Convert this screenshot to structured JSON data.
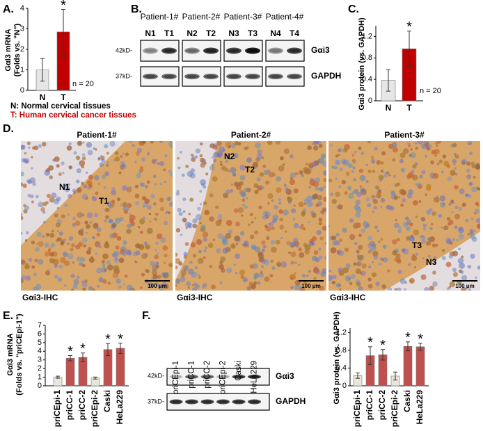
{
  "panel_labels": [
    "A.",
    "B.",
    "C.",
    "D.",
    "E.",
    "F."
  ],
  "chart_data": [
    {
      "type": "bar",
      "ylabel": [
        "Gαi3 mRNA",
        "(Folds vs. \"N\")"
      ],
      "categories": [
        "N",
        "T"
      ],
      "category_colors": [
        "#000000",
        "#c00000"
      ],
      "values": [
        1.0,
        2.85
      ],
      "errors": [
        0.55,
        1.1
      ],
      "colors": [
        "#e6e6e6",
        "#c00000"
      ],
      "markers": [
        null,
        "*"
      ],
      "ylim": [
        0,
        4
      ],
      "yticks": [
        0,
        1,
        2,
        3,
        4
      ],
      "note": "n = 20"
    },
    {
      "type": "bar",
      "ylabel": [
        "Gαi3 protein (vs. GAPDH)"
      ],
      "categories": [
        "N",
        "T"
      ],
      "category_colors": [
        "#000000",
        "#c00000"
      ],
      "values": [
        0.38,
        0.97
      ],
      "errors": [
        0.2,
        0.33
      ],
      "colors": [
        "#e6e6e6",
        "#c00000"
      ],
      "markers": [
        null,
        "*"
      ],
      "ylim": [
        0,
        1.4
      ],
      "yticks": [
        0,
        0.4,
        0.8,
        1.2
      ],
      "note": "n = 20"
    },
    {
      "type": "bar",
      "ylabel": [
        "Gαi3 mRNA",
        "(Folds vs. \"priCEpi-1\")"
      ],
      "categories": [
        "priCEpi-1",
        "priCC-1",
        "priCC-2",
        "priCEpi-2",
        "Caski",
        "HeLa229"
      ],
      "category_colors": [
        "#999999",
        "#c0504d",
        "#c0504d",
        "#999999",
        "#c0504d",
        "#c0504d"
      ],
      "values": [
        1.0,
        3.2,
        3.3,
        0.9,
        4.2,
        4.35
      ],
      "errors": [
        0.12,
        0.3,
        0.5,
        0.12,
        0.7,
        0.6
      ],
      "colors": [
        "#ebe6dc",
        "#c0504d",
        "#c0504d",
        "#ebe6dc",
        "#c0504d",
        "#c0504d"
      ],
      "markers": [
        null,
        "*",
        "*",
        null,
        "*",
        "*"
      ],
      "ylim": [
        0,
        7
      ],
      "yticks": [
        0,
        1,
        2,
        3,
        4,
        5,
        6,
        7
      ]
    },
    {
      "type": "bar",
      "ylabel": [
        "Gαi3 protein (vs. GAPDH)"
      ],
      "categories": [
        "priCEpi-1",
        "priCC-1",
        "priCC-2",
        "priCEpi-2",
        "Caski",
        "HeLa229"
      ],
      "category_colors": [
        "#999999",
        "#c0504d",
        "#c0504d",
        "#999999",
        "#c0504d",
        "#c0504d"
      ],
      "values": [
        0.23,
        0.68,
        0.7,
        0.22,
        0.89,
        0.88
      ],
      "errors": [
        0.06,
        0.2,
        0.12,
        0.09,
        0.1,
        0.08
      ],
      "colors": [
        "#ebe6dc",
        "#c0504d",
        "#c0504d",
        "#ebe6dc",
        "#c0504d",
        "#c0504d"
      ],
      "markers": [
        null,
        "*",
        "*",
        null,
        "*",
        "*"
      ],
      "ylim": [
        0,
        1.3
      ],
      "yticks": [
        0,
        0.4,
        0.8,
        1.2
      ]
    }
  ],
  "panel_a_legend": [
    "N: Normal cervical tissues",
    "T: Human cervical cancer tissues"
  ],
  "panel_b": {
    "patients": [
      "Patient-1#",
      "Patient-2#",
      "Patient-3#",
      "Patient-4#"
    ],
    "lanes": [
      "N1",
      "T1",
      "N2",
      "T2",
      "N3",
      "T3",
      "N4",
      "T4"
    ],
    "markers": [
      "42kD-",
      "37kD-"
    ],
    "proteins": [
      "Gαi3",
      "GAPDH"
    ]
  },
  "panel_d": {
    "patients": [
      "Patient-1#",
      "Patient-2#",
      "Patient-3#"
    ],
    "labels": [
      [
        "N1",
        "T1"
      ],
      [
        "N2",
        "T2"
      ],
      [
        "T3",
        "N3"
      ]
    ],
    "scale_bar": [
      "100 μm",
      "100 μm",
      "100 μm"
    ],
    "stain": [
      "Gαi3-IHC",
      "Gαi3-IHC",
      "Gαi3-IHC"
    ]
  },
  "panel_f_blot": {
    "lanes": [
      "priCEpi-1",
      "priCC-1",
      "priCC-2",
      "priCEpi-2",
      "Caski",
      "HeLa229"
    ],
    "markers": [
      "42kD-",
      "37kD-"
    ],
    "proteins": [
      "Gαi3",
      "GAPDH"
    ]
  }
}
